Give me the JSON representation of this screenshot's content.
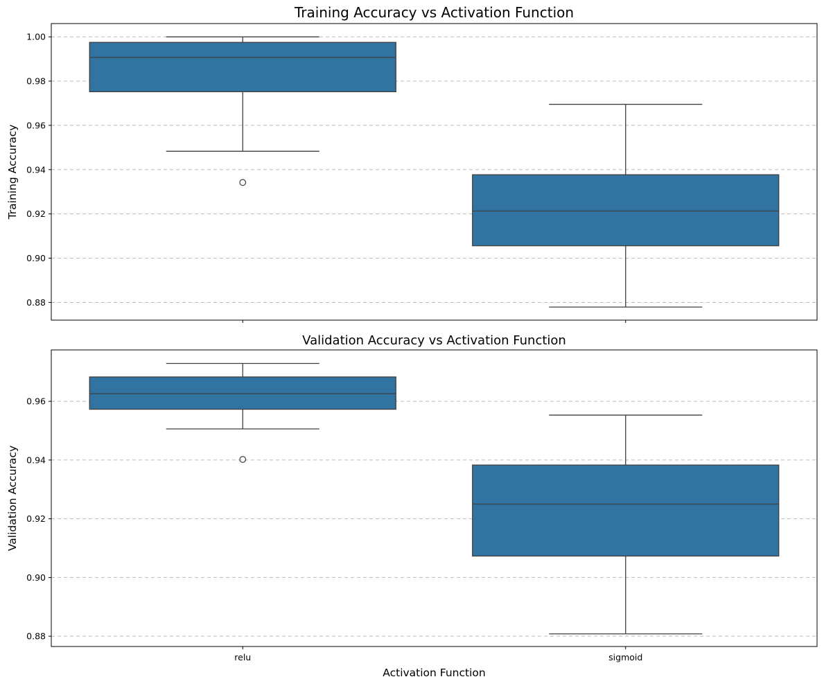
{
  "chart_data": [
    {
      "type": "box",
      "title": "Training Accuracy vs Activation Function",
      "xlabel": "",
      "ylabel": "Training Accuracy",
      "categories": [
        "relu",
        "sigmoid"
      ],
      "ylim": [
        0.872,
        1.006
      ],
      "yticks": [
        "0.88",
        "0.90",
        "0.92",
        "0.94",
        "0.96",
        "0.98",
        "1.00"
      ],
      "grid": "y, dashed",
      "box_color": "#3274a1",
      "boxes": [
        {
          "category": "relu",
          "whisker_low": 0.9483,
          "q1": 0.9752,
          "median": 0.9907,
          "q3": 0.9975,
          "whisker_high": 1.0,
          "outliers": [
            0.9342
          ]
        },
        {
          "category": "sigmoid",
          "whisker_low": 0.8779,
          "q1": 0.9056,
          "median": 0.9213,
          "q3": 0.9377,
          "whisker_high": 0.9695,
          "outliers": []
        }
      ]
    },
    {
      "type": "box",
      "title": "Validation Accuracy vs Activation Function",
      "xlabel": "Activation Function",
      "ylabel": "Validation Accuracy",
      "categories": [
        "relu",
        "sigmoid"
      ],
      "ylim": [
        0.8765,
        0.9775
      ],
      "yticks": [
        "0.88",
        "0.90",
        "0.92",
        "0.94",
        "0.96"
      ],
      "grid": "y, dashed",
      "box_color": "#3274a1",
      "boxes": [
        {
          "category": "relu",
          "whisker_low": 0.9506,
          "q1": 0.9573,
          "median": 0.9626,
          "q3": 0.9683,
          "whisker_high": 0.9729,
          "outliers": [
            0.9402
          ]
        },
        {
          "category": "sigmoid",
          "whisker_low": 0.8808,
          "q1": 0.9073,
          "median": 0.925,
          "q3": 0.9383,
          "whisker_high": 0.9553,
          "outliers": []
        }
      ]
    }
  ]
}
